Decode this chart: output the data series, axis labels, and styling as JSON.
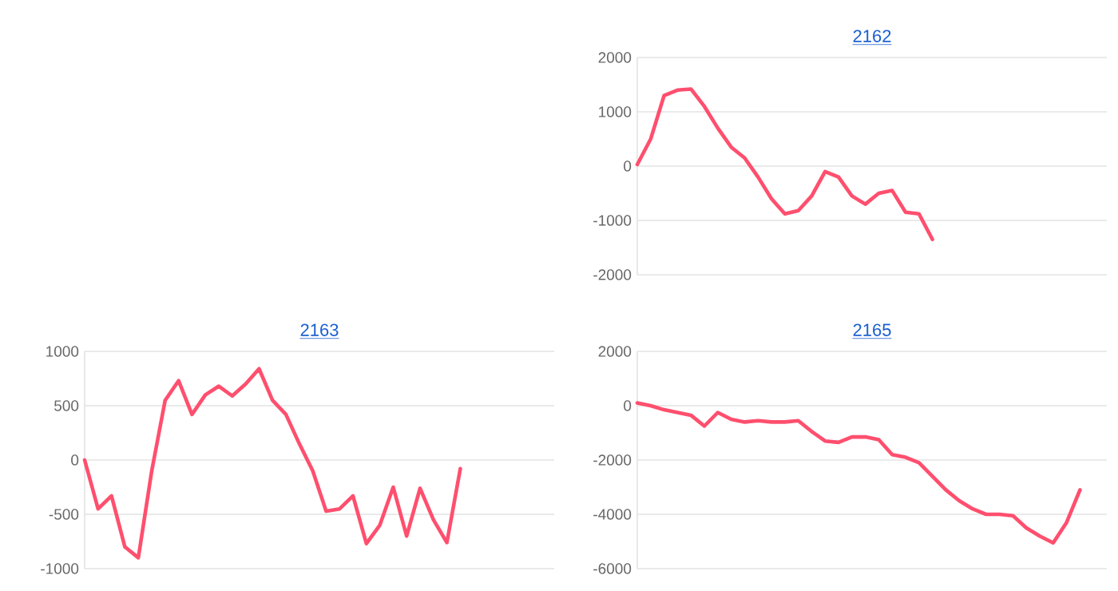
{
  "chart_data": [
    {
      "type": "line",
      "title": "2162",
      "categories": [
        null,
        null,
        null,
        null,
        null,
        null,
        null,
        null,
        null,
        null,
        null,
        null,
        null,
        null,
        null,
        null,
        null,
        null,
        null,
        null,
        null,
        null,
        null,
        null,
        null,
        null,
        null,
        null,
        null,
        null,
        null,
        null,
        null,
        null,
        null,
        null
      ],
      "series": [
        {
          "color": "#ff4f6e",
          "values": [
            30,
            500,
            1300,
            1400,
            1420,
            1100,
            700,
            350,
            150,
            -200,
            -600,
            -880,
            -820,
            -550,
            -100,
            -200,
            -550,
            -700,
            -500,
            -450,
            -850,
            -880,
            -1350,
            null,
            null,
            null,
            null,
            null,
            null,
            null,
            null,
            null,
            null,
            null,
            null,
            null
          ]
        }
      ],
      "ylim": [
        -2000,
        2000
      ],
      "yticks": [
        -2000,
        -1000,
        0,
        1000,
        2000
      ],
      "grid": "y",
      "tick_labels": "y"
    },
    {
      "type": "line",
      "title": "2163",
      "categories": [
        null,
        null,
        null,
        null,
        null,
        null,
        null,
        null,
        null,
        null,
        null,
        null,
        null,
        null,
        null,
        null,
        null,
        null,
        null,
        null,
        null,
        null,
        null,
        null,
        null,
        null,
        null,
        null,
        null,
        null,
        null,
        null,
        null,
        null,
        null,
        null
      ],
      "series": [
        {
          "color": "#ff4f6e",
          "values": [
            0,
            -450,
            -330,
            -800,
            -900,
            -100,
            550,
            730,
            420,
            600,
            680,
            590,
            700,
            840,
            550,
            420,
            150,
            -100,
            -470,
            -450,
            -330,
            -770,
            -600,
            -250,
            -700,
            -260,
            -550,
            -760,
            -80,
            null,
            null,
            null,
            null,
            null,
            null,
            null
          ]
        }
      ],
      "ylim": [
        -1000,
        1000
      ],
      "yticks": [
        -1000,
        -500,
        0,
        500,
        1000
      ],
      "grid": "y",
      "tick_labels": "y"
    },
    {
      "type": "line",
      "title": "2165",
      "categories": [
        null,
        null,
        null,
        null,
        null,
        null,
        null,
        null,
        null,
        null,
        null,
        null,
        null,
        null,
        null,
        null,
        null,
        null,
        null,
        null,
        null,
        null,
        null,
        null,
        null,
        null,
        null,
        null,
        null,
        null,
        null,
        null,
        null,
        null,
        null,
        null
      ],
      "series": [
        {
          "color": "#ff4f6e",
          "values": [
            100,
            0,
            -150,
            -250,
            -350,
            -750,
            -250,
            -500,
            -600,
            -550,
            -600,
            -600,
            -550,
            -950,
            -1300,
            -1350,
            -1150,
            -1150,
            -1250,
            -1800,
            -1900,
            -2100,
            -2600,
            -3100,
            -3500,
            -3800,
            -4000,
            -4000,
            -4050,
            -4500,
            -4800,
            -5050,
            -4300,
            -3100,
            null,
            null
          ]
        }
      ],
      "ylim": [
        -6000,
        2000
      ],
      "yticks": [
        -6000,
        -4000,
        -2000,
        0,
        2000
      ],
      "grid": "y",
      "tick_labels": "y"
    }
  ]
}
